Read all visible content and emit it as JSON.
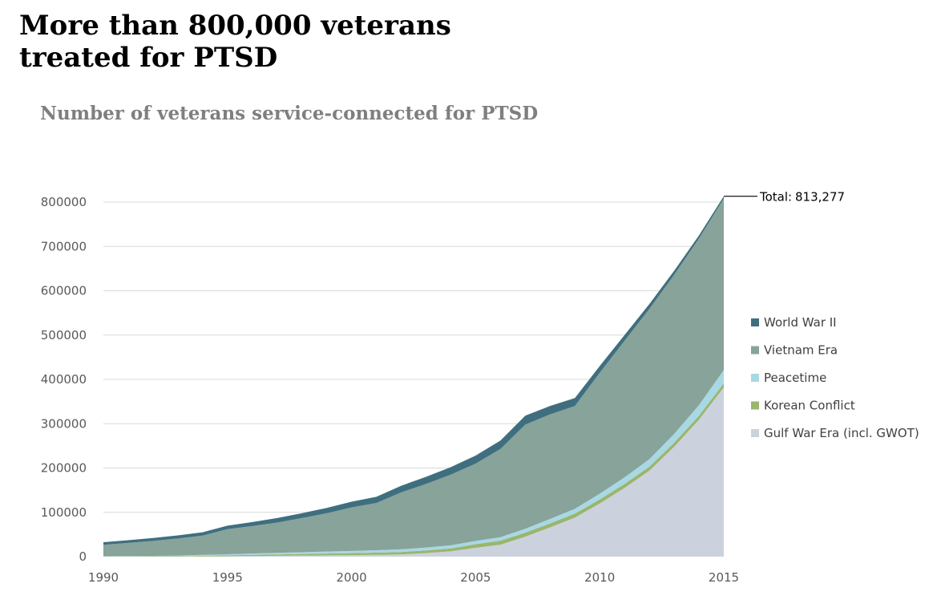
{
  "header": {
    "title_line1": "More than 800,000 veterans",
    "title_line2": "treated for PTSD",
    "subtitle": "Number of veterans service-connected for PTSD"
  },
  "chart_data": {
    "type": "area",
    "stacked": true,
    "title": "Number of veterans service-connected for PTSD",
    "xlabel": "",
    "ylabel": "",
    "x": [
      1990,
      1991,
      1992,
      1993,
      1994,
      1995,
      1996,
      1997,
      1998,
      1999,
      2000,
      2001,
      2002,
      2003,
      2004,
      2005,
      2006,
      2007,
      2008,
      2009,
      2010,
      2011,
      2012,
      2013,
      2014,
      2015
    ],
    "xticks": [
      "1990",
      "1995",
      "2000",
      "2005",
      "2010",
      "2015"
    ],
    "yticks": [
      "0",
      "100000",
      "200000",
      "300000",
      "400000",
      "500000",
      "600000",
      "700000",
      "800000"
    ],
    "ylim": [
      0,
      800000
    ],
    "xlim": [
      1990,
      2015
    ],
    "grid": "horizontal",
    "legend_position": "right",
    "series": [
      {
        "name": "Gulf War Era (incl. GWOT)",
        "color": "#cbd2dd",
        "values": [
          0,
          0,
          0,
          0,
          500,
          1000,
          1500,
          2000,
          2500,
          3000,
          3500,
          4000,
          5000,
          8000,
          12000,
          20000,
          27000,
          45000,
          66000,
          88000,
          120000,
          155000,
          194000,
          248000,
          309000,
          382000
        ]
      },
      {
        "name": "Korean Conflict",
        "color": "#9bb56e",
        "values": [
          500,
          600,
          800,
          1000,
          1500,
          2000,
          2500,
          3000,
          3500,
          4000,
          4500,
          5000,
          5500,
          6000,
          6500,
          8000,
          9000,
          9000,
          9000,
          9000,
          9000,
          9000,
          9000,
          9000,
          9000,
          9000
        ]
      },
      {
        "name": "Peacetime",
        "color": "#a8d8e3",
        "values": [
          500,
          800,
          1000,
          1500,
          2000,
          2500,
          3000,
          3500,
          4000,
          4500,
          5000,
          5500,
          6000,
          6500,
          7000,
          7500,
          8000,
          9000,
          10000,
          11000,
          13000,
          15000,
          17000,
          20000,
          24000,
          30000
        ]
      },
      {
        "name": "Vietnam Era",
        "color": "#87a39a",
        "values": [
          25600,
          29600,
          33700,
          38500,
          43500,
          56500,
          62000,
          68500,
          77000,
          86500,
          98000,
          106500,
          128500,
          143500,
          159500,
          174500,
          199000,
          235000,
          236000,
          232000,
          273000,
          308000,
          339000,
          359000,
          376000,
          387277
        ]
      },
      {
        "name": "World War II",
        "color": "#3f6f7f",
        "values": [
          6000,
          6000,
          6500,
          7000,
          7500,
          8000,
          9000,
          10000,
          11000,
          12000,
          13000,
          14000,
          15000,
          16000,
          17000,
          18000,
          19000,
          20000,
          19000,
          18000,
          15000,
          13000,
          11000,
          9000,
          7000,
          5000
        ]
      }
    ],
    "legend_order": [
      "World War II",
      "Vietnam Era",
      "Peacetime",
      "Korean Conflict",
      "Gulf War Era (incl. GWOT)"
    ],
    "annotation": {
      "label": "Total:",
      "value": "813,277",
      "year": 2015,
      "total": 813277
    }
  }
}
